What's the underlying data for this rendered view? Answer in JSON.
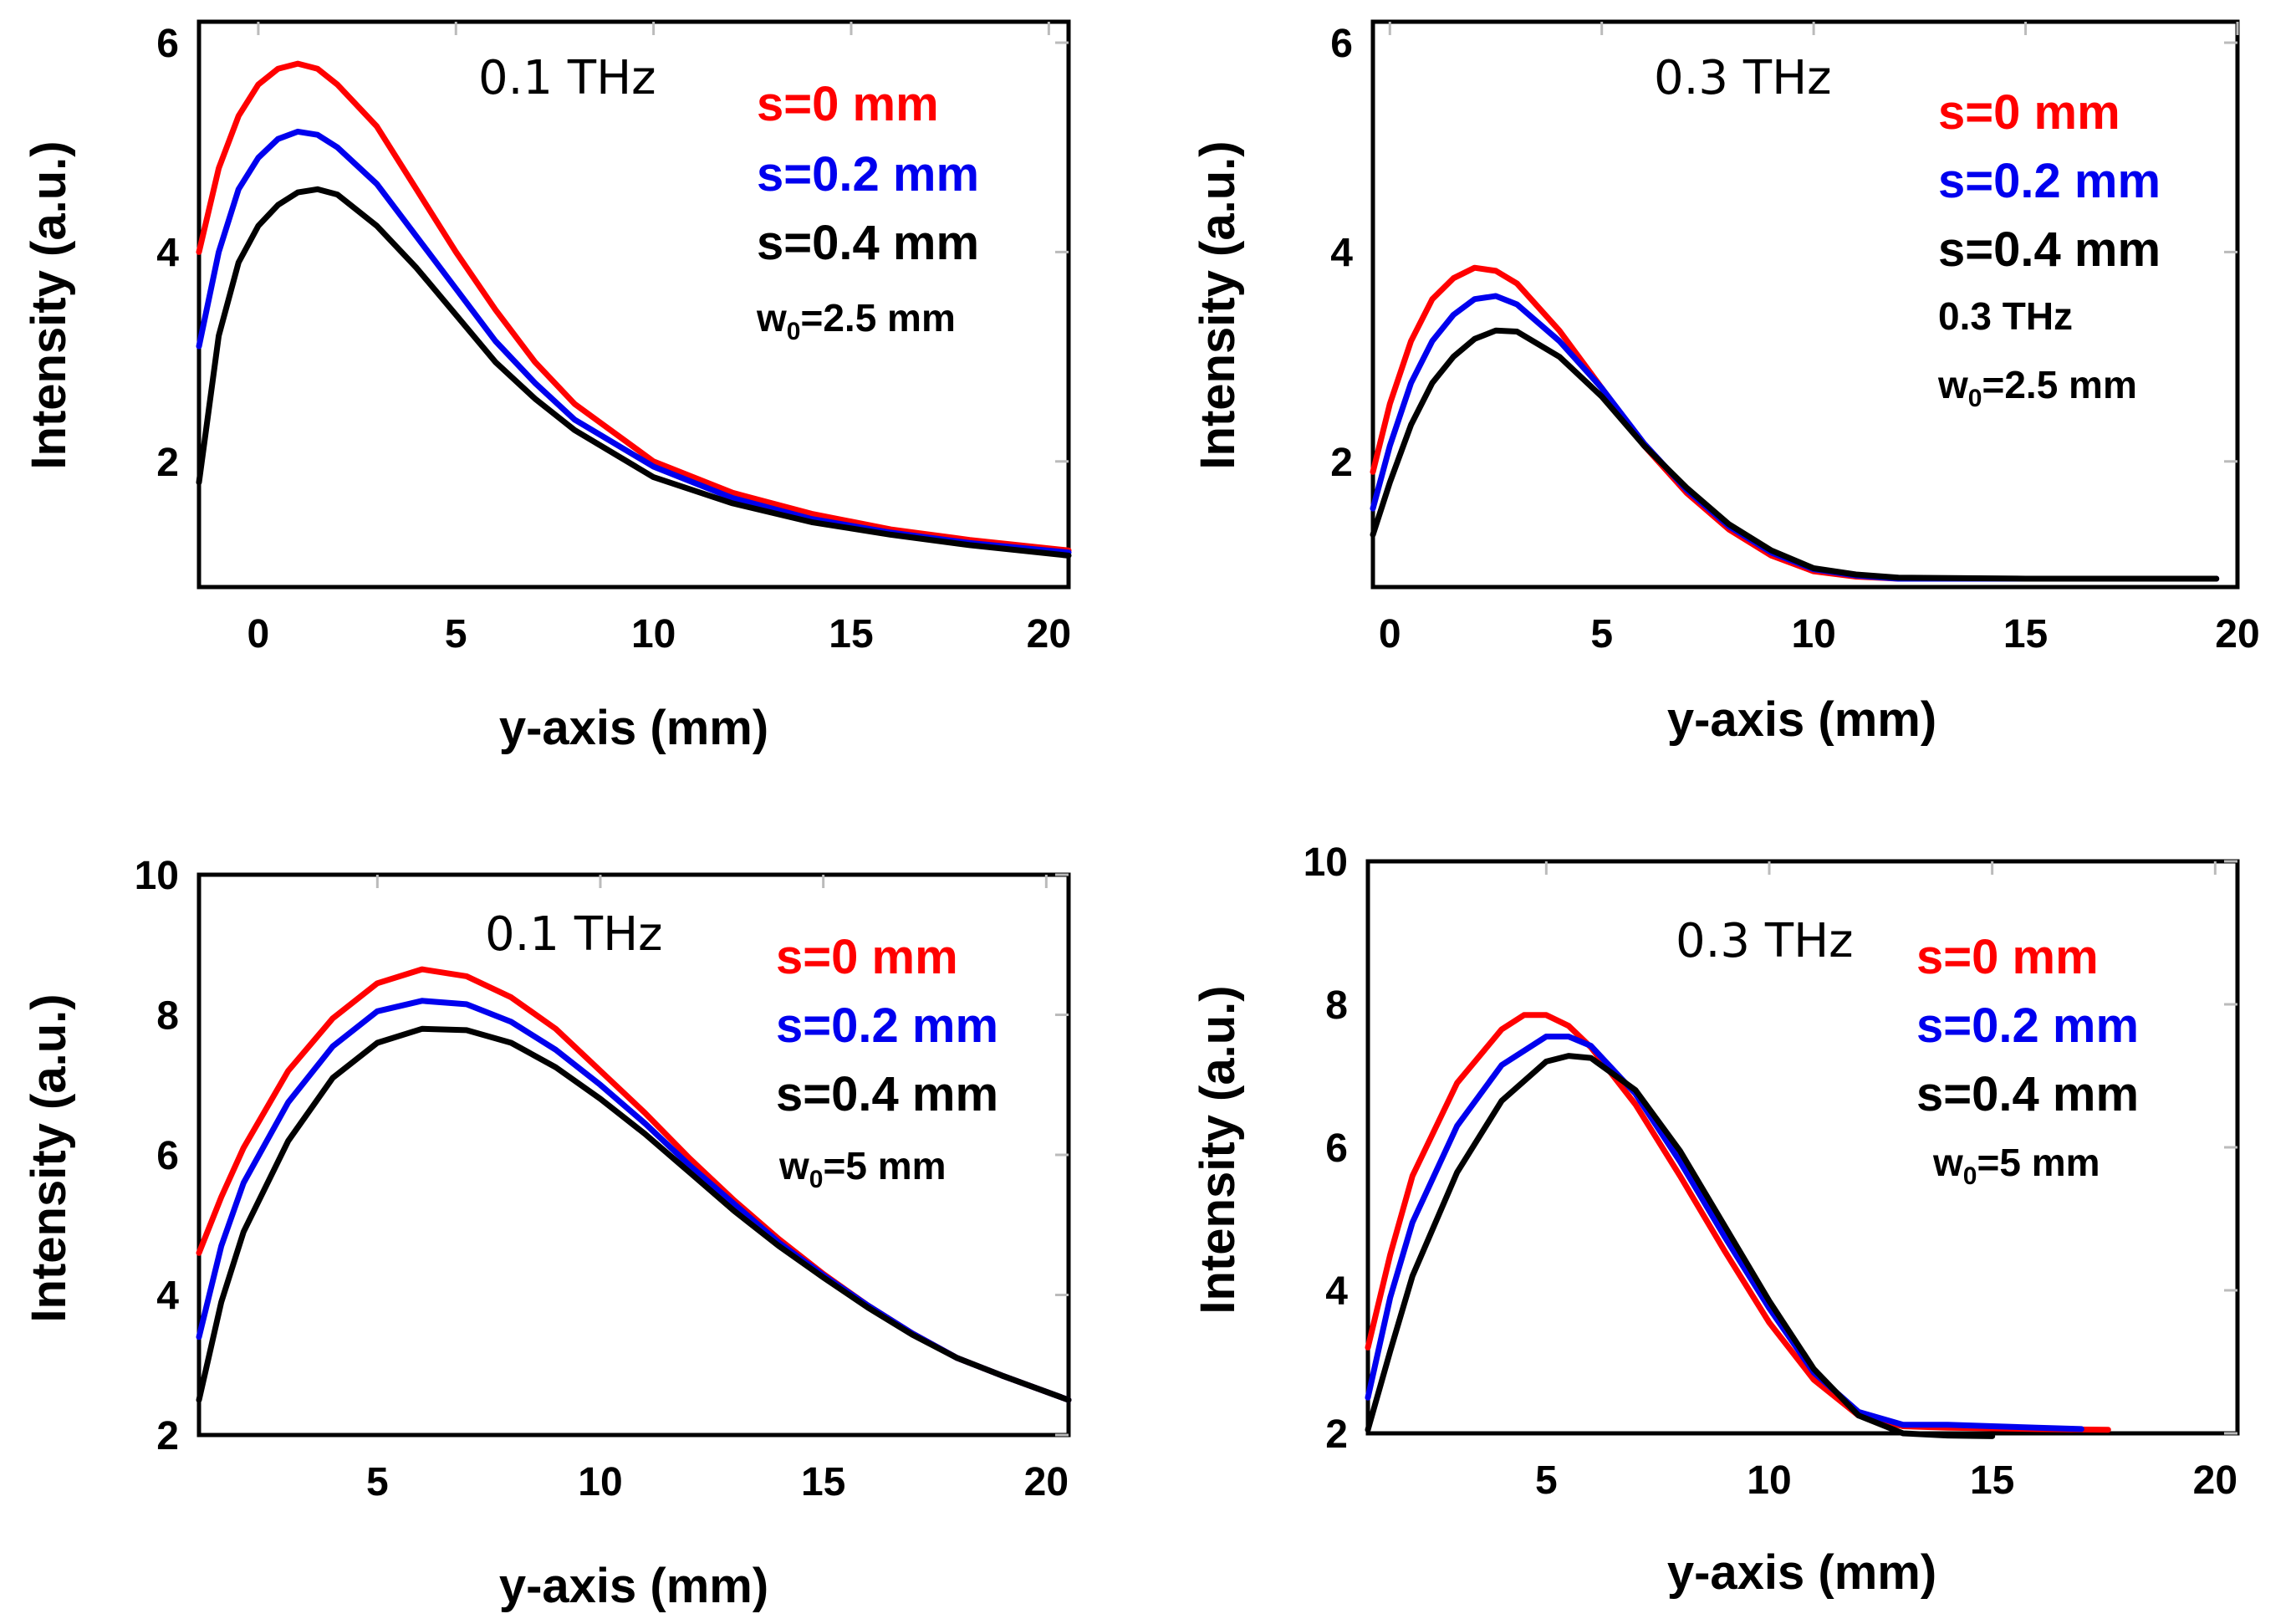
{
  "colors": {
    "red": "#ff0000",
    "blue": "#0000ee",
    "black": "#000000"
  },
  "chart_data": [
    {
      "type": "line",
      "freq_label": "0.1 THz",
      "legend": [
        "s=0 mm",
        "s=0.2 mm",
        "s=0.4 mm"
      ],
      "note": {
        "prefix": "w",
        "sub": "0",
        "suffix": "=2.5 mm"
      },
      "extra_note": "",
      "xlabel": "y-axis (mm)",
      "ylabel": "Intensity (a.u.)",
      "xlim": [
        -1.5,
        20.5
      ],
      "ylim": [
        0.8,
        6.2
      ],
      "xticks": [
        0,
        5,
        10,
        15,
        20
      ],
      "yticks": [
        2,
        4,
        6
      ],
      "series": [
        {
          "name": "s=0 mm",
          "color": "#ff0000",
          "x": [
            -1.5,
            -1,
            -0.5,
            0,
            0.5,
            1,
            1.5,
            2,
            3,
            4,
            5,
            6,
            7,
            8,
            10,
            12,
            14,
            16,
            18,
            20.5
          ],
          "y": [
            4.0,
            4.8,
            5.3,
            5.6,
            5.75,
            5.8,
            5.75,
            5.6,
            5.2,
            4.6,
            4.0,
            3.45,
            2.95,
            2.55,
            2.0,
            1.7,
            1.5,
            1.35,
            1.25,
            1.15
          ]
        },
        {
          "name": "s=0.2 mm",
          "color": "#0000ee",
          "x": [
            -1.5,
            -1,
            -0.5,
            0,
            0.5,
            1,
            1.5,
            2,
            3,
            4,
            5,
            6,
            7,
            8,
            10,
            12,
            14,
            16,
            18,
            20.5
          ],
          "y": [
            3.1,
            4.0,
            4.6,
            4.9,
            5.08,
            5.15,
            5.12,
            5.0,
            4.65,
            4.15,
            3.65,
            3.15,
            2.75,
            2.4,
            1.95,
            1.65,
            1.45,
            1.32,
            1.22,
            1.13
          ]
        },
        {
          "name": "s=0.4 mm",
          "color": "#000000",
          "x": [
            -1.5,
            -1,
            -0.5,
            0,
            0.5,
            1,
            1.5,
            2,
            3,
            4,
            5,
            6,
            7,
            8,
            10,
            12,
            14,
            16,
            18,
            20.5
          ],
          "y": [
            1.8,
            3.2,
            3.9,
            4.25,
            4.45,
            4.57,
            4.6,
            4.55,
            4.25,
            3.85,
            3.4,
            2.95,
            2.6,
            2.3,
            1.85,
            1.6,
            1.42,
            1.3,
            1.2,
            1.1
          ]
        }
      ]
    },
    {
      "type": "line",
      "freq_label": "0.3 THz",
      "legend": [
        "s=0 mm",
        "s=0.2 mm",
        "s=0.4 mm"
      ],
      "note": {
        "prefix": "w",
        "sub": "0",
        "suffix": "=2.5 mm"
      },
      "extra_note": "0.3 THz",
      "xlabel": "y-axis (mm)",
      "ylabel": "Intensity (a.u.)",
      "xlim": [
        -0.4,
        20
      ],
      "ylim": [
        0.8,
        6.2
      ],
      "xticks": [
        0,
        5,
        10,
        15,
        20
      ],
      "yticks": [
        2,
        4,
        6
      ],
      "series": [
        {
          "name": "s=0 mm",
          "color": "#ff0000",
          "x": [
            -0.4,
            0,
            0.5,
            1,
            1.5,
            2,
            2.5,
            3,
            4,
            5,
            6,
            7,
            8,
            9,
            10,
            11,
            12,
            15,
            19.5
          ],
          "y": [
            1.9,
            2.55,
            3.15,
            3.55,
            3.75,
            3.85,
            3.82,
            3.7,
            3.25,
            2.7,
            2.15,
            1.7,
            1.35,
            1.1,
            0.95,
            0.9,
            0.88,
            0.88,
            0.88
          ]
        },
        {
          "name": "s=0.2 mm",
          "color": "#0000ee",
          "x": [
            -0.4,
            0,
            0.5,
            1,
            1.5,
            2,
            2.5,
            3,
            4,
            5,
            6,
            7,
            8,
            9,
            10,
            11,
            12,
            15,
            19.5
          ],
          "y": [
            1.55,
            2.15,
            2.75,
            3.15,
            3.4,
            3.55,
            3.58,
            3.5,
            3.15,
            2.7,
            2.17,
            1.73,
            1.38,
            1.13,
            0.97,
            0.91,
            0.88,
            0.88,
            0.88
          ]
        },
        {
          "name": "s=0.4 mm",
          "color": "#000000",
          "x": [
            -0.4,
            0,
            0.5,
            1,
            1.5,
            2,
            2.5,
            3,
            4,
            5,
            6,
            7,
            8,
            9,
            10,
            11,
            12,
            15,
            19.5
          ],
          "y": [
            1.3,
            1.8,
            2.35,
            2.75,
            3.0,
            3.17,
            3.25,
            3.24,
            3.0,
            2.62,
            2.15,
            1.75,
            1.4,
            1.15,
            0.98,
            0.92,
            0.89,
            0.88,
            0.88
          ]
        }
      ]
    },
    {
      "type": "line",
      "freq_label": "0.1 THz",
      "legend": [
        "s=0 mm",
        "s=0.2 mm",
        "s=0.4 mm"
      ],
      "note": {
        "prefix": "w",
        "sub": "0",
        "suffix": "=5 mm"
      },
      "extra_note": "",
      "xlabel": "y-axis (mm)",
      "ylabel": "Intensity (a.u.)",
      "xlim": [
        1,
        20.5
      ],
      "ylim": [
        2,
        10
      ],
      "xticks": [
        5,
        10,
        15,
        20
      ],
      "yticks": [
        2,
        4,
        6,
        8,
        10
      ],
      "series": [
        {
          "name": "s=0 mm",
          "color": "#ff0000",
          "x": [
            1,
            1.5,
            2,
            3,
            4,
            5,
            6,
            7,
            8,
            9,
            10,
            11,
            12,
            13,
            14,
            15,
            16,
            17,
            18,
            19,
            20.5
          ],
          "y": [
            4.6,
            5.4,
            6.1,
            7.2,
            7.95,
            8.45,
            8.65,
            8.55,
            8.25,
            7.8,
            7.2,
            6.6,
            5.95,
            5.35,
            4.8,
            4.3,
            3.85,
            3.45,
            3.1,
            2.85,
            2.5
          ]
        },
        {
          "name": "s=0.2 mm",
          "color": "#0000ee",
          "x": [
            1,
            1.5,
            2,
            3,
            4,
            5,
            6,
            7,
            8,
            9,
            10,
            11,
            12,
            13,
            14,
            15,
            16,
            17,
            18,
            19,
            20.5
          ],
          "y": [
            3.4,
            4.7,
            5.6,
            6.75,
            7.55,
            8.05,
            8.2,
            8.15,
            7.9,
            7.5,
            7.0,
            6.45,
            5.85,
            5.3,
            4.75,
            4.28,
            3.85,
            3.45,
            3.1,
            2.85,
            2.5
          ]
        },
        {
          "name": "s=0.4 mm",
          "color": "#000000",
          "x": [
            1,
            1.5,
            2,
            3,
            4,
            5,
            6,
            7,
            8,
            9,
            10,
            11,
            12,
            13,
            14,
            15,
            16,
            17,
            18,
            19,
            20.5
          ],
          "y": [
            2.5,
            3.9,
            4.9,
            6.2,
            7.1,
            7.6,
            7.8,
            7.78,
            7.6,
            7.25,
            6.8,
            6.3,
            5.75,
            5.2,
            4.7,
            4.25,
            3.82,
            3.43,
            3.1,
            2.85,
            2.5
          ]
        }
      ]
    },
    {
      "type": "line",
      "freq_label": "0.3 THz",
      "legend": [
        "s=0 mm",
        "s=0.2 mm",
        "s=0.4 mm"
      ],
      "note": {
        "prefix": "w",
        "sub": "0",
        "suffix": "=5 mm"
      },
      "extra_note": "",
      "xlabel": "y-axis (mm)",
      "ylabel": "Intensity (a.u.)",
      "xlim": [
        1,
        20.5
      ],
      "ylim": [
        2,
        10
      ],
      "xticks": [
        5,
        10,
        15,
        20
      ],
      "yticks": [
        2,
        4,
        6,
        8,
        10
      ],
      "series": [
        {
          "name": "s=0 mm",
          "color": "#ff0000",
          "x": [
            1,
            1.5,
            2,
            3,
            4,
            4.5,
            5,
            5.5,
            6,
            7,
            8,
            9,
            10,
            11,
            12,
            13,
            14,
            15,
            16,
            17.6
          ],
          "y": [
            3.2,
            4.5,
            5.6,
            6.9,
            7.65,
            7.85,
            7.85,
            7.7,
            7.4,
            6.6,
            5.6,
            4.55,
            3.55,
            2.75,
            2.25,
            2.1,
            2.08,
            2.07,
            2.06,
            2.05
          ]
        },
        {
          "name": "s=0.2 mm",
          "color": "#0000ee",
          "x": [
            1,
            1.5,
            2,
            3,
            4,
            5,
            5.5,
            6,
            7,
            8,
            9,
            10,
            11,
            12,
            13,
            14,
            15,
            16,
            17
          ],
          "y": [
            2.5,
            3.9,
            4.95,
            6.3,
            7.15,
            7.55,
            7.55,
            7.42,
            6.75,
            5.8,
            4.75,
            3.75,
            2.85,
            2.3,
            2.12,
            2.12,
            2.1,
            2.08,
            2.06
          ]
        },
        {
          "name": "s=0.4 mm",
          "color": "#000000",
          "x": [
            1,
            1.5,
            2,
            3,
            4,
            5,
            5.5,
            6,
            7,
            8,
            9,
            10,
            11,
            12,
            13,
            14,
            15
          ],
          "y": [
            2.05,
            3.15,
            4.2,
            5.65,
            6.65,
            7.2,
            7.28,
            7.25,
            6.8,
            5.95,
            4.9,
            3.85,
            2.9,
            2.25,
            2.0,
            1.97,
            1.96
          ]
        }
      ]
    }
  ]
}
